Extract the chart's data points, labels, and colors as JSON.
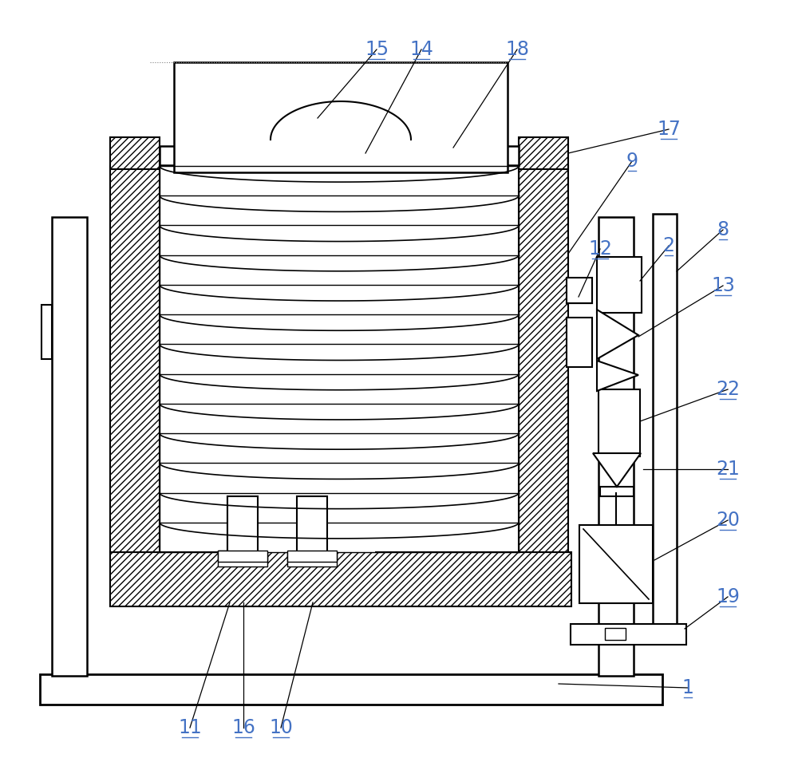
{
  "bg_color": "#ffffff",
  "line_color": "#000000",
  "label_color": "#4472C4",
  "figsize": [
    10.0,
    9.55
  ],
  "dpi": 100,
  "leaders": [
    [
      "1",
      862,
      862,
      700,
      857
    ],
    [
      "2",
      838,
      308,
      802,
      352
    ],
    [
      "8",
      906,
      288,
      848,
      340
    ],
    [
      "9",
      792,
      202,
      712,
      318
    ],
    [
      "10",
      352,
      912,
      392,
      755
    ],
    [
      "11",
      238,
      912,
      288,
      755
    ],
    [
      "12",
      752,
      312,
      725,
      372
    ],
    [
      "13",
      906,
      358,
      800,
      422
    ],
    [
      "14",
      528,
      62,
      458,
      192
    ],
    [
      "15",
      472,
      62,
      398,
      148
    ],
    [
      "16",
      305,
      912,
      305,
      755
    ],
    [
      "17",
      838,
      162,
      712,
      192
    ],
    [
      "18",
      648,
      62,
      568,
      185
    ],
    [
      "19",
      912,
      748,
      858,
      788
    ],
    [
      "20",
      912,
      652,
      820,
      702
    ],
    [
      "21",
      912,
      588,
      806,
      588
    ],
    [
      "22",
      912,
      488,
      802,
      528
    ]
  ]
}
